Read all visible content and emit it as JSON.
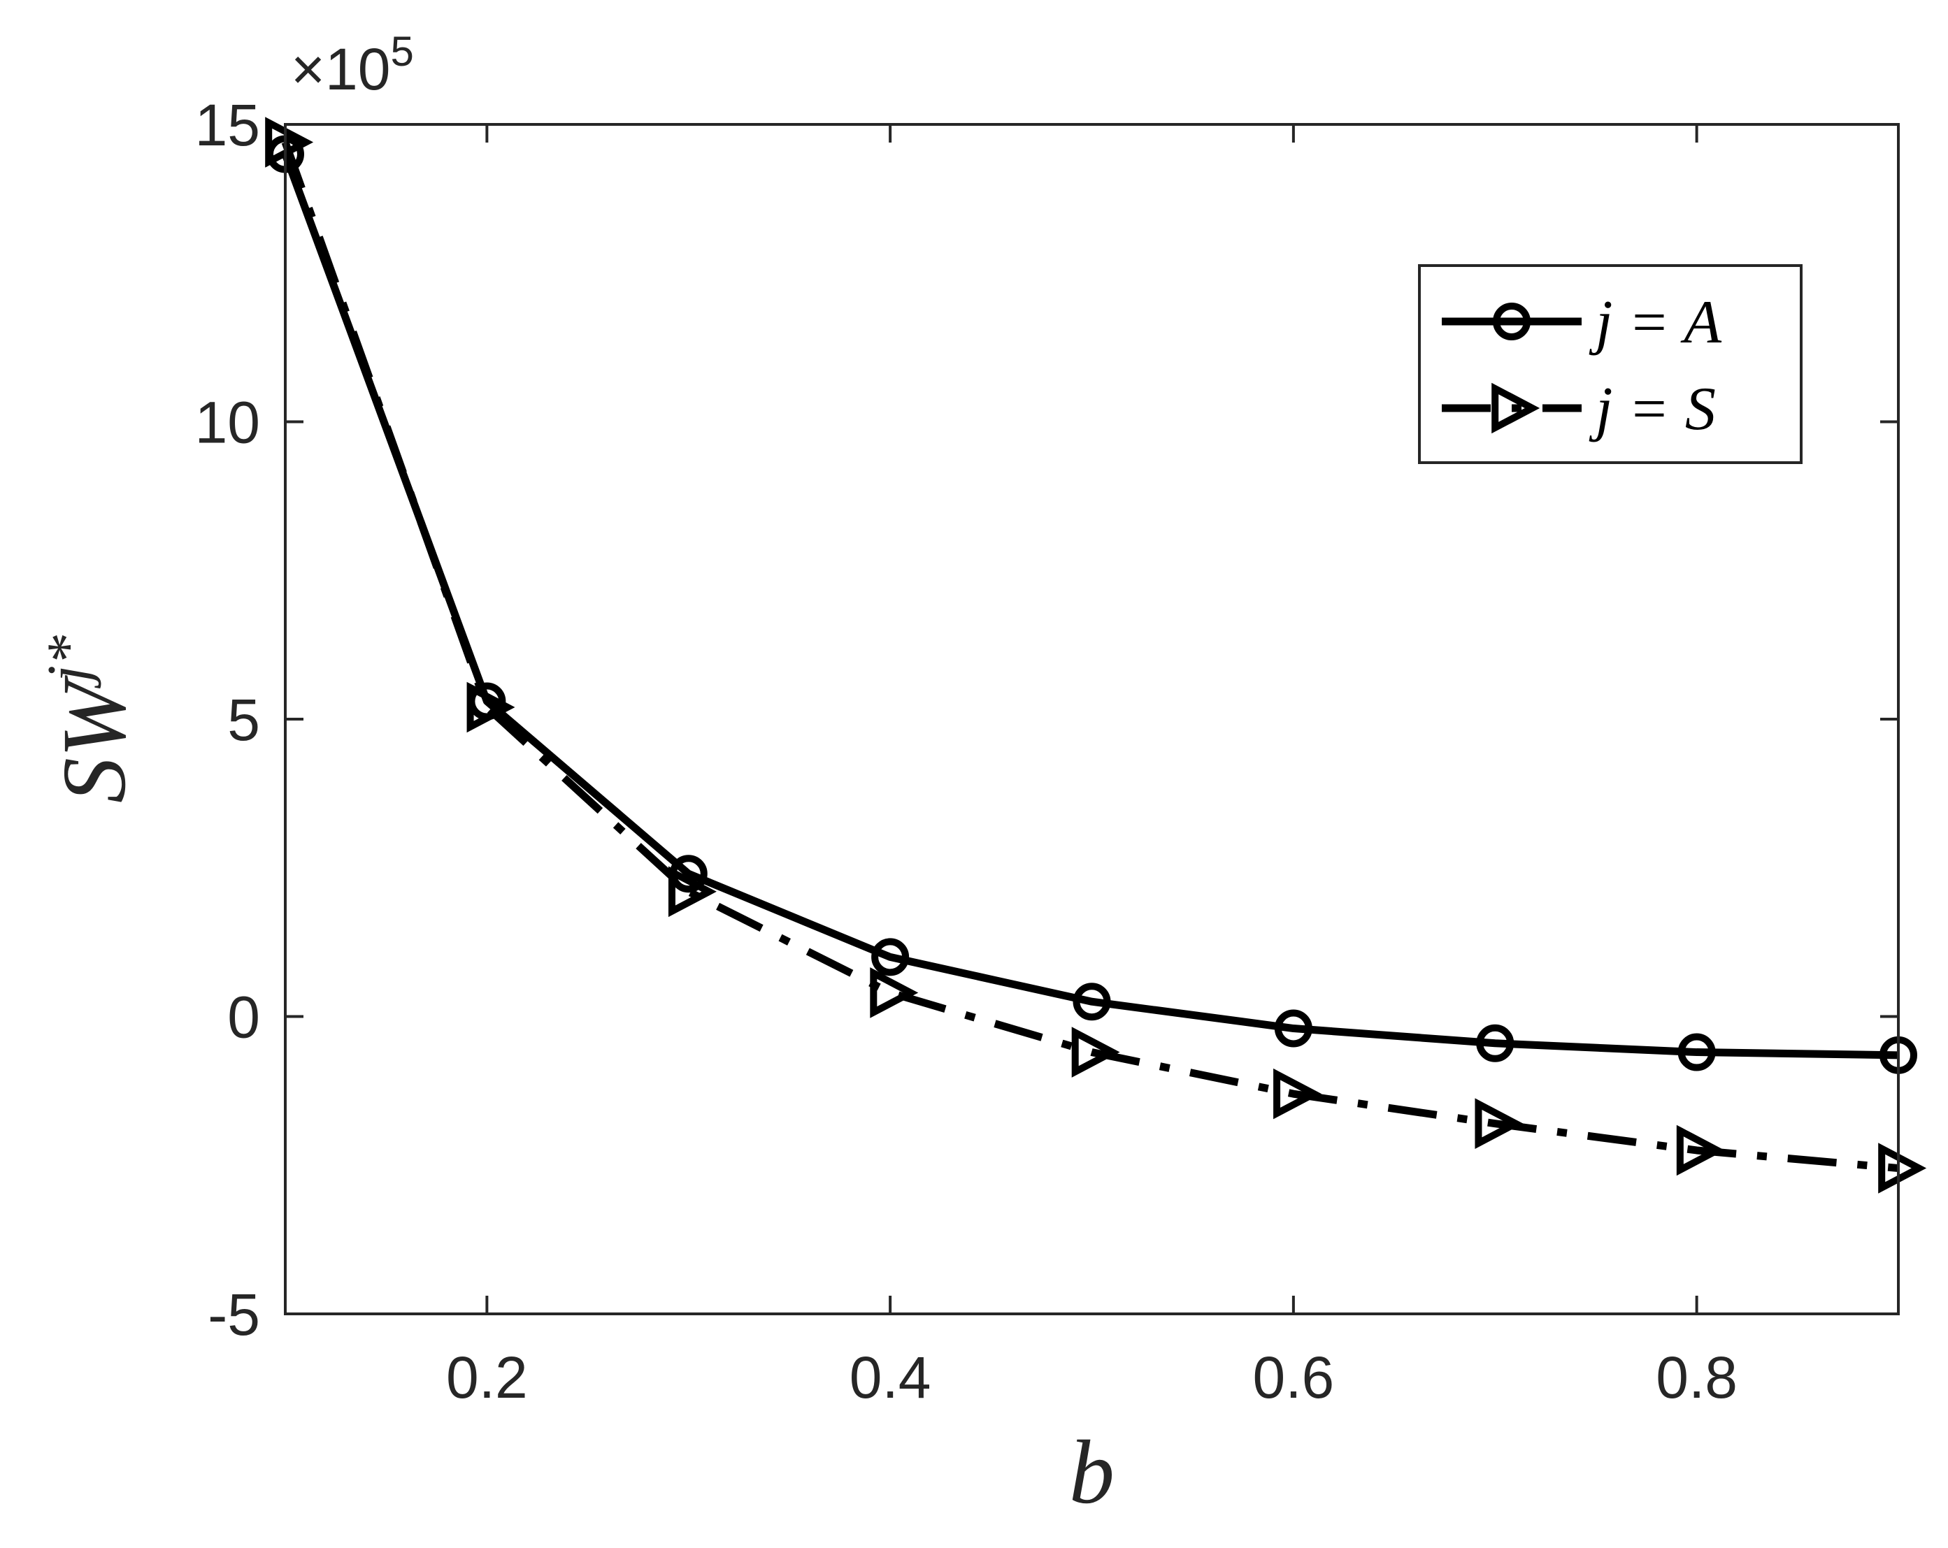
{
  "chart_data": {
    "type": "line",
    "xlabel": "b",
    "ylabel": "SW",
    "ylabel_superscript": "j*",
    "y_multiplier": "×10",
    "y_multiplier_exponent": "5",
    "xlim": [
      0.1,
      0.9
    ],
    "ylim": [
      -5,
      15
    ],
    "xticks": [
      0.2,
      0.4,
      0.6,
      0.8
    ],
    "xtick_labels": [
      "0.2",
      "0.4",
      "0.6",
      "0.8"
    ],
    "yticks": [
      -5,
      0,
      5,
      10,
      15
    ],
    "ytick_labels": [
      "-5",
      "0",
      "5",
      "10",
      "15"
    ],
    "grid": false,
    "legend_position": "top-right",
    "x": [
      0.1,
      0.2,
      0.3,
      0.4,
      0.5,
      0.6,
      0.7,
      0.8,
      0.9
    ],
    "series": [
      {
        "name": "j = A",
        "marker": "circle",
        "line_style": "solid",
        "color": "#000000",
        "values": [
          14.5,
          5.3,
          2.4,
          1.0,
          0.25,
          -0.2,
          -0.45,
          -0.6,
          -0.65
        ]
      },
      {
        "name": "j = S",
        "marker": "triangle-right",
        "line_style": "dash-dot",
        "color": "#000000",
        "values": [
          14.7,
          5.2,
          2.1,
          0.4,
          -0.6,
          -1.3,
          -1.8,
          -2.25,
          -2.55
        ]
      }
    ]
  }
}
